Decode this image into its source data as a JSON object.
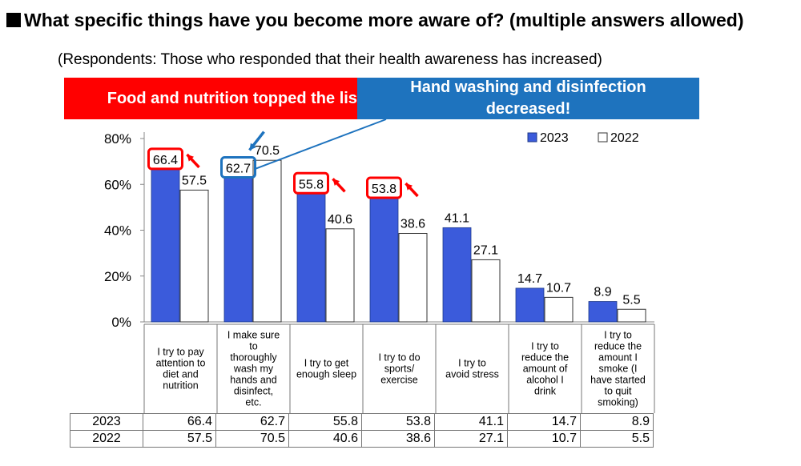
{
  "title": "What specific things have you become more aware of? (multiple answers allowed)",
  "subtitle": "(Respondents: Those who responded that their health awareness has increased)",
  "callouts": {
    "red": "Food and nutrition topped the list!",
    "blue": "Hand washing and disinfection decreased!"
  },
  "colors": {
    "series_2023": "#3b5bdb",
    "series_2022": "#ffffff",
    "highlight_red": "#ff0000",
    "highlight_blue": "#1e73be"
  },
  "chart_data": {
    "type": "bar",
    "categories": [
      "I try to pay attention to diet and nutrition",
      "I make sure to thoroughly wash my hands and disinfect, etc.",
      "I try to get enough sleep",
      "I try to do sports/ exercise",
      "I try to avoid stress",
      "I try to reduce the amount of alcohol I drink",
      "I try to reduce the amount I smoke (I have started to quit smoking)"
    ],
    "series": [
      {
        "name": "2023",
        "values": [
          66.4,
          62.7,
          55.8,
          53.8,
          41.1,
          14.7,
          8.9
        ]
      },
      {
        "name": "2022",
        "values": [
          57.5,
          70.5,
          40.6,
          38.6,
          27.1,
          10.7,
          5.5
        ]
      }
    ],
    "yticks": [
      "0%",
      "20%",
      "40%",
      "60%",
      "80%"
    ],
    "ylim": [
      0,
      80
    ],
    "legend": [
      "2023",
      "2022"
    ],
    "legend_placement": "top-right",
    "highlighted_red": [
      0,
      2,
      3
    ],
    "highlighted_blue": [
      1
    ],
    "grid": false
  },
  "table": {
    "rows": [
      {
        "label": "2023",
        "values": [
          "66.4",
          "62.7",
          "55.8",
          "53.8",
          "41.1",
          "14.7",
          "8.9"
        ]
      },
      {
        "label": "2022",
        "values": [
          "57.5",
          "70.5",
          "40.6",
          "38.6",
          "27.1",
          "10.7",
          "5.5"
        ]
      }
    ]
  }
}
